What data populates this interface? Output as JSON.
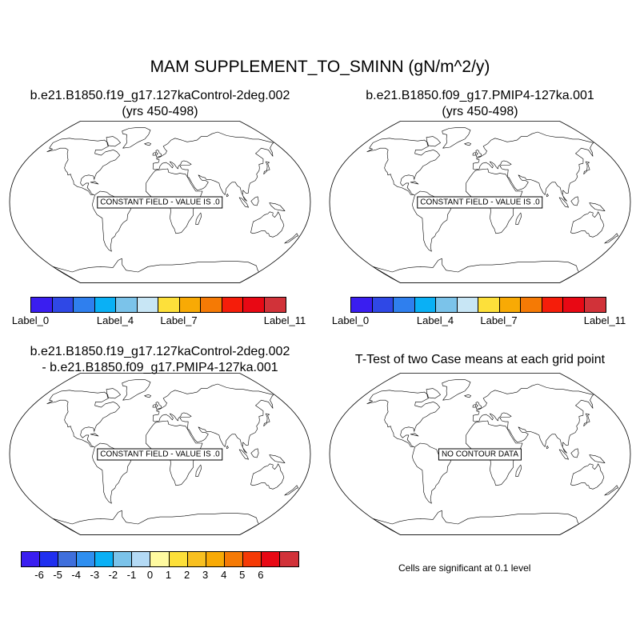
{
  "figure": {
    "title": "MAM SUPPLEMENT_TO_SMINN (gN/m^2/y)"
  },
  "panels": [
    {
      "title_lines": [
        "b.e21.B1850.f19_g17.127kaControl-2deg.002",
        "(yrs 450-498)"
      ],
      "message": "CONSTANT FIELD - VALUE IS .0"
    },
    {
      "title_lines": [
        "b.e21.B1850.f09_g17.PMIP4-127ka.001",
        "(yrs 450-498)"
      ],
      "message": "CONSTANT FIELD - VALUE IS .0"
    },
    {
      "title_lines": [
        "b.e21.B1850.f19_g17.127kaControl-2deg.002",
        "- b.e21.B1850.f09_g17.PMIP4-127ka.001"
      ],
      "message": "CONSTANT FIELD - VALUE IS .0"
    },
    {
      "title_lines": [
        "T-Test of two Case means at each grid point"
      ],
      "message": "NO CONTOUR DATA"
    }
  ],
  "colorbar_top": {
    "colors": [
      "#3a1ef0",
      "#2f48e6",
      "#2f7fee",
      "#0ab0f5",
      "#7bc3ea",
      "#c8e6f5",
      "#fde03a",
      "#f8aa05",
      "#f57a05",
      "#f51d0a",
      "#e80814",
      "#d13239"
    ],
    "labels": [
      "Label_0",
      "Label_4",
      "Label_7",
      "Label_11"
    ]
  },
  "colorbar_bottom": {
    "colors": [
      "#3a1ef0",
      "#1f2ff0",
      "#3f6fdc",
      "#2f8ff0",
      "#0ab0f5",
      "#7bc3ea",
      "#b4daf5",
      "#fffaa0",
      "#fde03a",
      "#f8c020",
      "#f8aa05",
      "#f57a05",
      "#f53a05",
      "#e80814",
      "#d13239"
    ],
    "labels": [
      "-6",
      "-5",
      "-4",
      "-3",
      "-2",
      "-1",
      "0",
      "1",
      "2",
      "3",
      "4",
      "5",
      "6"
    ]
  },
  "ttest_note": "Cells are significant at 0.1 level"
}
